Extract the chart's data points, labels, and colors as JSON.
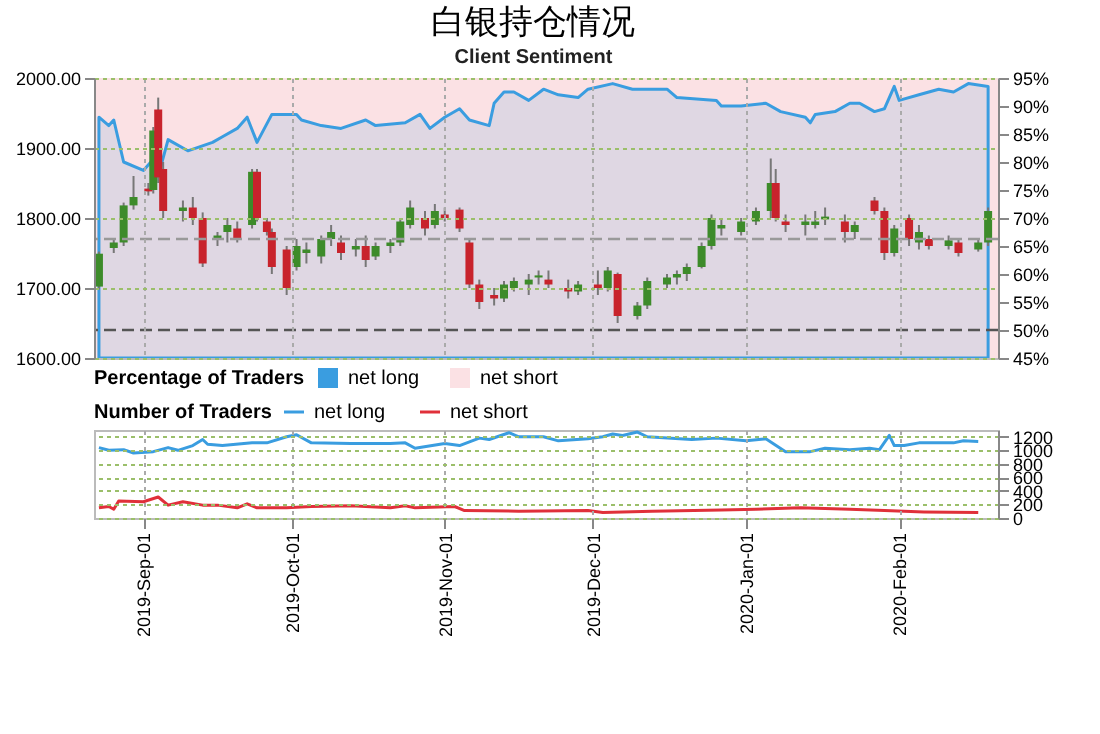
{
  "chart_data": [
    {
      "type": "candlestick",
      "title": "白银持仓情况",
      "subtitle": "Client Sentiment",
      "x": [
        "2019-08-23",
        "2019-08-26",
        "2019-08-28",
        "2019-08-30",
        "2019-09-02",
        "2019-09-03",
        "2019-09-04",
        "2019-09-05",
        "2019-09-09",
        "2019-09-11",
        "2019-09-13",
        "2019-09-16",
        "2019-09-18",
        "2019-09-20",
        "2019-09-23",
        "2019-09-24",
        "2019-09-26",
        "2019-09-27",
        "2019-09-30",
        "2019-10-02",
        "2019-10-04",
        "2019-10-07",
        "2019-10-09",
        "2019-10-11",
        "2019-10-14",
        "2019-10-16",
        "2019-10-18",
        "2019-10-21",
        "2019-10-23",
        "2019-10-25",
        "2019-10-28",
        "2019-10-30",
        "2019-11-01",
        "2019-11-04",
        "2019-11-06",
        "2019-11-08",
        "2019-11-11",
        "2019-11-13",
        "2019-11-15",
        "2019-11-18",
        "2019-11-20",
        "2019-11-22",
        "2019-11-26",
        "2019-11-28",
        "2019-12-02",
        "2019-12-04",
        "2019-12-06",
        "2019-12-10",
        "2019-12-12",
        "2019-12-16",
        "2019-12-18",
        "2019-12-20",
        "2019-12-23",
        "2019-12-25",
        "2019-12-27",
        "2019-12-31",
        "2020-01-03",
        "2020-01-06",
        "2020-01-07",
        "2020-01-09",
        "2020-01-13",
        "2020-01-15",
        "2020-01-17",
        "2020-01-21",
        "2020-01-23",
        "2020-01-27",
        "2020-01-29",
        "2020-01-31",
        "2020-02-03",
        "2020-02-05",
        "2020-02-07",
        "2020-02-11",
        "2020-02-13",
        "2020-02-17",
        "2020-02-19"
      ],
      "ohlc": [
        [
          1702,
          1752,
          1698,
          1749
        ],
        [
          1757,
          1770,
          1750,
          1765
        ],
        [
          1765,
          1822,
          1760,
          1818
        ],
        [
          1818,
          1860,
          1812,
          1830
        ],
        [
          1842,
          1850,
          1832,
          1838
        ],
        [
          1840,
          1930,
          1835,
          1925
        ],
        [
          1955,
          1972,
          1850,
          1858
        ],
        [
          1870,
          1880,
          1800,
          1810
        ],
        [
          1810,
          1825,
          1795,
          1815
        ],
        [
          1815,
          1830,
          1790,
          1800
        ],
        [
          1800,
          1808,
          1730,
          1735
        ],
        [
          1770,
          1780,
          1760,
          1775
        ],
        [
          1780,
          1800,
          1765,
          1790
        ],
        [
          1785,
          1795,
          1765,
          1770
        ],
        [
          1790,
          1870,
          1785,
          1866
        ],
        [
          1866,
          1870,
          1795,
          1800
        ],
        [
          1795,
          1800,
          1775,
          1780
        ],
        [
          1780,
          1785,
          1720,
          1730
        ],
        [
          1755,
          1760,
          1690,
          1700
        ],
        [
          1730,
          1770,
          1725,
          1760
        ],
        [
          1750,
          1765,
          1735,
          1755
        ],
        [
          1745,
          1775,
          1735,
          1770
        ],
        [
          1770,
          1790,
          1760,
          1780
        ],
        [
          1765,
          1775,
          1740,
          1750
        ],
        [
          1755,
          1770,
          1745,
          1760
        ],
        [
          1760,
          1775,
          1730,
          1740
        ],
        [
          1745,
          1765,
          1740,
          1760
        ],
        [
          1760,
          1770,
          1750,
          1765
        ],
        [
          1765,
          1800,
          1760,
          1795
        ],
        [
          1790,
          1825,
          1785,
          1815
        ],
        [
          1800,
          1810,
          1775,
          1785
        ],
        [
          1790,
          1820,
          1785,
          1810
        ],
        [
          1805,
          1815,
          1795,
          1800
        ],
        [
          1812,
          1815,
          1780,
          1785
        ],
        [
          1765,
          1770,
          1700,
          1705
        ],
        [
          1705,
          1712,
          1670,
          1680
        ],
        [
          1690,
          1700,
          1675,
          1685
        ],
        [
          1685,
          1710,
          1680,
          1705
        ],
        [
          1700,
          1715,
          1695,
          1710
        ],
        [
          1705,
          1720,
          1690,
          1712
        ],
        [
          1715,
          1725,
          1705,
          1718
        ],
        [
          1712,
          1725,
          1700,
          1705
        ],
        [
          1700,
          1712,
          1685,
          1695
        ],
        [
          1695,
          1710,
          1690,
          1705
        ],
        [
          1705,
          1725,
          1690,
          1700
        ],
        [
          1700,
          1730,
          1695,
          1725
        ],
        [
          1720,
          1722,
          1650,
          1660
        ],
        [
          1660,
          1680,
          1655,
          1675
        ],
        [
          1675,
          1715,
          1670,
          1710
        ],
        [
          1705,
          1720,
          1700,
          1715
        ],
        [
          1715,
          1725,
          1705,
          1720
        ],
        [
          1720,
          1735,
          1710,
          1730
        ],
        [
          1730,
          1765,
          1728,
          1760
        ],
        [
          1760,
          1805,
          1755,
          1800
        ],
        [
          1785,
          1800,
          1775,
          1790
        ],
        [
          1780,
          1800,
          1775,
          1795
        ],
        [
          1795,
          1815,
          1790,
          1810
        ],
        [
          1810,
          1885,
          1800,
          1850
        ],
        [
          1850,
          1870,
          1795,
          1800
        ],
        [
          1795,
          1805,
          1780,
          1790
        ],
        [
          1790,
          1805,
          1775,
          1795
        ],
        [
          1790,
          1810,
          1785,
          1795
        ],
        [
          1798,
          1815,
          1790,
          1802
        ],
        [
          1795,
          1805,
          1765,
          1780
        ],
        [
          1780,
          1795,
          1770,
          1790
        ],
        [
          1825,
          1830,
          1805,
          1810
        ],
        [
          1810,
          1815,
          1740,
          1750
        ],
        [
          1750,
          1790,
          1745,
          1785
        ],
        [
          1800,
          1805,
          1760,
          1770
        ],
        [
          1765,
          1790,
          1755,
          1780
        ],
        [
          1770,
          1775,
          1755,
          1760
        ],
        [
          1760,
          1775,
          1755,
          1768
        ],
        [
          1765,
          1770,
          1745,
          1750
        ],
        [
          1755,
          1770,
          1752,
          1765
        ],
        [
          1765,
          1815,
          1760,
          1810
        ]
      ],
      "series": [
        {
          "name": "net long",
          "type": "area",
          "axis": "y2",
          "color": "#3a9de0",
          "x": [
            "2019-08-23",
            "2019-08-25",
            "2019-08-26",
            "2019-08-28",
            "2019-09-01",
            "2019-09-03",
            "2019-09-04",
            "2019-09-06",
            "2019-09-10",
            "2019-09-15",
            "2019-09-17",
            "2019-09-20",
            "2019-09-22",
            "2019-09-24",
            "2019-09-27",
            "2019-10-02",
            "2019-10-03",
            "2019-10-07",
            "2019-10-11",
            "2019-10-16",
            "2019-10-18",
            "2019-10-24",
            "2019-10-27",
            "2019-10-29",
            "2019-11-01",
            "2019-11-04",
            "2019-11-06",
            "2019-11-10",
            "2019-11-11",
            "2019-11-13",
            "2019-11-15",
            "2019-11-18",
            "2019-11-21",
            "2019-11-24",
            "2019-11-28",
            "2019-11-30",
            "2019-12-05",
            "2019-12-09",
            "2019-12-16",
            "2019-12-18",
            "2019-12-26",
            "2019-12-27",
            "2019-12-31",
            "2020-01-05",
            "2020-01-08",
            "2020-01-13",
            "2020-01-14",
            "2020-01-15",
            "2020-01-19",
            "2020-01-22",
            "2020-01-24",
            "2020-01-27",
            "2020-01-29",
            "2020-01-31",
            "2020-02-01",
            "2020-02-05",
            "2020-02-09",
            "2020-02-12",
            "2020-02-15",
            "2020-02-19"
          ],
          "values": [
            88,
            86.5,
            87.5,
            80,
            78.5,
            80.5,
            77.5,
            84,
            82,
            83.5,
            84.5,
            86,
            88,
            83.5,
            88.5,
            88.5,
            87.5,
            86.5,
            86,
            87.5,
            86.5,
            87,
            88.5,
            86,
            88,
            89.5,
            87.5,
            86.5,
            90.5,
            92.5,
            92.5,
            91,
            93,
            92,
            91.5,
            93,
            94,
            93,
            93,
            91.5,
            91,
            90,
            90,
            90.5,
            89,
            88,
            87,
            88.5,
            89,
            90.5,
            90.5,
            89,
            89.5,
            93.5,
            91,
            92,
            93,
            92.5,
            94,
            93.5
          ]
        }
      ],
      "bands": [
        {
          "axis": "y2",
          "from": 45,
          "to": 95,
          "color": "#fbe1e4",
          "label": "net short"
        }
      ],
      "ref_lines": [
        {
          "axis": "y",
          "value": 1770,
          "line_style": "dashed",
          "color": "#999999"
        },
        {
          "axis": "y2",
          "value": 50,
          "line_style": "dashed",
          "color": "#555555"
        }
      ],
      "xlim": [
        "2019-08-22",
        "2020-02-21"
      ],
      "xticks": [
        {
          "value": "2019-09-01",
          "label": null
        },
        {
          "value": "2019-10-01",
          "label": null
        },
        {
          "value": "2019-11-01",
          "label": null
        },
        {
          "value": "2019-12-01",
          "label": null
        },
        {
          "value": "2020-01-01",
          "label": null
        },
        {
          "value": "2020-02-01",
          "label": null
        }
      ],
      "ylim": [
        1600,
        2000
      ],
      "yticks": [
        {
          "value": 1600,
          "label": "1600.00"
        },
        {
          "value": 1700,
          "label": "1700.00"
        },
        {
          "value": 1800,
          "label": "1800.00"
        },
        {
          "value": 1900,
          "label": "1900.00"
        },
        {
          "value": 2000,
          "label": "2000.00"
        }
      ],
      "y2lim": [
        45,
        95
      ],
      "y2ticks": [
        {
          "value": 45,
          "label": "45%"
        },
        {
          "value": 50,
          "label": "50%"
        },
        {
          "value": 55,
          "label": "55%"
        },
        {
          "value": 60,
          "label": "60%"
        },
        {
          "value": 65,
          "label": "65%"
        },
        {
          "value": 70,
          "label": "70%"
        },
        {
          "value": 75,
          "label": "75%"
        },
        {
          "value": 80,
          "label": "80%"
        },
        {
          "value": 85,
          "label": "85%"
        },
        {
          "value": 90,
          "label": "90%"
        },
        {
          "value": 95,
          "label": "95%"
        }
      ],
      "legend_title": "Percentage of Traders",
      "legend": "bottom",
      "grid": true,
      "tick_labels": "y"
    },
    {
      "type": "line",
      "legend_title": "Number of Traders",
      "legend": "top",
      "grid": true,
      "series": [
        {
          "name": "net long",
          "color": "#3a9de0",
          "x": [
            "2019-08-23",
            "2019-08-25",
            "2019-08-28",
            "2019-08-30",
            "2019-09-03",
            "2019-09-06",
            "2019-09-08",
            "2019-09-11",
            "2019-09-13",
            "2019-09-14",
            "2019-09-17",
            "2019-09-23",
            "2019-09-26",
            "2019-09-30",
            "2019-10-02",
            "2019-10-05",
            "2019-10-13",
            "2019-10-21",
            "2019-10-24",
            "2019-10-26",
            "2019-11-01",
            "2019-11-04",
            "2019-11-08",
            "2019-11-10",
            "2019-11-14",
            "2019-11-16",
            "2019-11-21",
            "2019-11-24",
            "2019-11-30",
            "2019-12-03",
            "2019-12-05",
            "2019-12-07",
            "2019-12-10",
            "2019-12-12",
            "2019-12-21",
            "2019-12-26",
            "2020-01-01",
            "2020-01-05",
            "2020-01-09",
            "2020-01-14",
            "2020-01-17",
            "2020-01-22",
            "2020-01-26",
            "2020-01-28",
            "2020-01-30",
            "2020-01-31",
            "2020-02-02",
            "2020-02-05",
            "2020-02-08",
            "2020-02-12",
            "2020-02-14",
            "2020-02-17"
          ],
          "values": [
            1040,
            1000,
            1010,
            960,
            980,
            1040,
            1000,
            1070,
            1160,
            1090,
            1070,
            1110,
            1110,
            1200,
            1230,
            1110,
            1100,
            1100,
            1110,
            1030,
            1100,
            1070,
            1180,
            1160,
            1260,
            1200,
            1200,
            1140,
            1170,
            1200,
            1240,
            1220,
            1270,
            1200,
            1160,
            1180,
            1140,
            1170,
            980,
            980,
            1030,
            1010,
            1030,
            1010,
            1220,
            1070,
            1070,
            1110,
            1110,
            1110,
            1140,
            1130
          ]
        },
        {
          "name": "net short",
          "color": "#e0303a",
          "x": [
            "2019-08-23",
            "2019-08-25",
            "2019-08-26",
            "2019-08-27",
            "2019-09-01",
            "2019-09-04",
            "2019-09-06",
            "2019-09-09",
            "2019-09-13",
            "2019-09-16",
            "2019-09-20",
            "2019-09-22",
            "2019-09-24",
            "2019-09-30",
            "2019-10-05",
            "2019-10-13",
            "2019-10-21",
            "2019-10-24",
            "2019-10-26",
            "2019-11-03",
            "2019-11-05",
            "2019-11-16",
            "2019-11-30",
            "2019-12-03",
            "2019-12-13",
            "2019-12-27",
            "2020-01-03",
            "2020-01-12",
            "2020-01-22",
            "2020-01-29",
            "2020-02-06",
            "2020-02-17"
          ],
          "values": [
            150,
            170,
            130,
            250,
            240,
            310,
            190,
            240,
            190,
            190,
            150,
            210,
            150,
            150,
            170,
            180,
            150,
            180,
            150,
            170,
            110,
            100,
            110,
            80,
            100,
            120,
            130,
            150,
            130,
            110,
            90,
            80
          ]
        }
      ],
      "xlim": [
        "2019-08-22",
        "2020-02-21"
      ],
      "xticks": [
        {
          "value": "2019-09-01",
          "label": "2019-Sep-01"
        },
        {
          "value": "2019-10-01",
          "label": "2019-Oct-01"
        },
        {
          "value": "2019-11-01",
          "label": "2019-Nov-01"
        },
        {
          "value": "2019-12-01",
          "label": "2019-Dec-01"
        },
        {
          "value": "2020-01-01",
          "label": "2020-Jan-01"
        },
        {
          "value": "2020-02-01",
          "label": "2020-Feb-01"
        }
      ],
      "ylim": [
        0,
        1300
      ],
      "yticks": [
        0,
        200,
        400,
        600,
        800,
        1000,
        1200
      ]
    }
  ]
}
